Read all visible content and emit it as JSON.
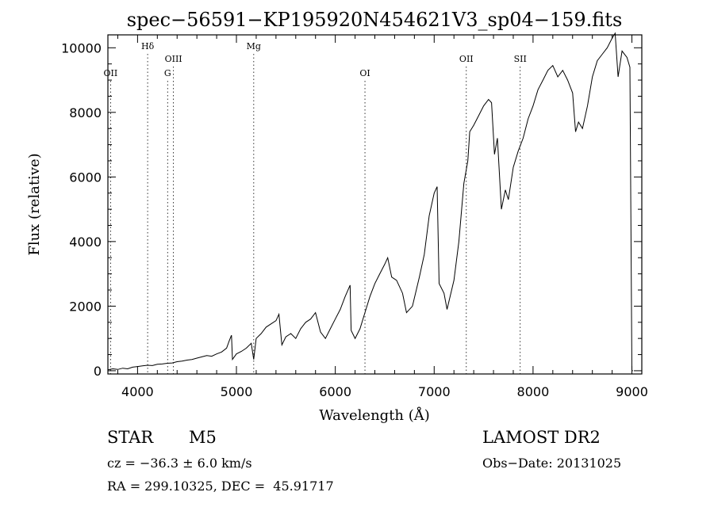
{
  "chart_data": {
    "type": "line",
    "title": "spec−56591−KP195920N454621V3_sp04−159.fits",
    "xlabel": "Wavelength (Å)",
    "ylabel": "Flux (relative)",
    "xlim": [
      3700,
      9100
    ],
    "ylim": [
      -100,
      10400
    ],
    "xticks": [
      4000,
      5000,
      6000,
      7000,
      8000,
      9000
    ],
    "xtick_labels": [
      "4000",
      "5000",
      "6000",
      "7000",
      "8000",
      "9000"
    ],
    "yticks": [
      0,
      2000,
      4000,
      6000,
      8000,
      10000
    ],
    "ytick_labels": [
      "0",
      "2000",
      "4000",
      "6000",
      "8000",
      "10000"
    ],
    "grid": false,
    "lines": [
      {
        "label": "OII",
        "x": 3727,
        "tier": 3
      },
      {
        "label": "Hδ",
        "x": 4102,
        "tier": 1
      },
      {
        "label": "OIII",
        "x": 4363,
        "tier": 2
      },
      {
        "label": "G",
        "x": 4304,
        "tier": 3
      },
      {
        "label": "Mg",
        "x": 5175,
        "tier": 1
      },
      {
        "label": "OI",
        "x": 6300,
        "tier": 3
      },
      {
        "label": "OII",
        "x": 7325,
        "tier": 2
      },
      {
        "label": "SII",
        "x": 7870,
        "tier": 2
      }
    ],
    "series": [
      {
        "name": "spectrum",
        "points": [
          [
            3700,
            30
          ],
          [
            3750,
            60
          ],
          [
            3800,
            40
          ],
          [
            3850,
            80
          ],
          [
            3900,
            60
          ],
          [
            3950,
            110
          ],
          [
            4000,
            130
          ],
          [
            4050,
            150
          ],
          [
            4100,
            170
          ],
          [
            4150,
            160
          ],
          [
            4200,
            200
          ],
          [
            4250,
            210
          ],
          [
            4300,
            230
          ],
          [
            4350,
            240
          ],
          [
            4400,
            280
          ],
          [
            4450,
            300
          ],
          [
            4500,
            330
          ],
          [
            4550,
            350
          ],
          [
            4600,
            390
          ],
          [
            4650,
            430
          ],
          [
            4700,
            470
          ],
          [
            4750,
            450
          ],
          [
            4800,
            520
          ],
          [
            4850,
            580
          ],
          [
            4900,
            700
          ],
          [
            4930,
            950
          ],
          [
            4950,
            1100
          ],
          [
            4960,
            350
          ],
          [
            5000,
            520
          ],
          [
            5050,
            600
          ],
          [
            5100,
            700
          ],
          [
            5150,
            850
          ],
          [
            5175,
            350
          ],
          [
            5200,
            1000
          ],
          [
            5250,
            1150
          ],
          [
            5300,
            1350
          ],
          [
            5350,
            1450
          ],
          [
            5400,
            1550
          ],
          [
            5430,
            1750
          ],
          [
            5460,
            800
          ],
          [
            5500,
            1050
          ],
          [
            5550,
            1150
          ],
          [
            5600,
            1000
          ],
          [
            5650,
            1300
          ],
          [
            5700,
            1500
          ],
          [
            5750,
            1600
          ],
          [
            5800,
            1800
          ],
          [
            5850,
            1200
          ],
          [
            5900,
            1000
          ],
          [
            5950,
            1300
          ],
          [
            6000,
            1600
          ],
          [
            6050,
            1900
          ],
          [
            6100,
            2300
          ],
          [
            6150,
            2650
          ],
          [
            6160,
            1250
          ],
          [
            6200,
            1000
          ],
          [
            6250,
            1300
          ],
          [
            6300,
            1800
          ],
          [
            6350,
            2300
          ],
          [
            6400,
            2700
          ],
          [
            6450,
            3000
          ],
          [
            6500,
            3300
          ],
          [
            6530,
            3500
          ],
          [
            6570,
            2900
          ],
          [
            6620,
            2800
          ],
          [
            6680,
            2400
          ],
          [
            6720,
            1800
          ],
          [
            6780,
            2000
          ],
          [
            6850,
            2900
          ],
          [
            6900,
            3600
          ],
          [
            6950,
            4800
          ],
          [
            7000,
            5500
          ],
          [
            7030,
            5700
          ],
          [
            7050,
            2700
          ],
          [
            7100,
            2400
          ],
          [
            7130,
            1900
          ],
          [
            7200,
            2800
          ],
          [
            7250,
            4000
          ],
          [
            7300,
            5800
          ],
          [
            7340,
            6500
          ],
          [
            7360,
            7400
          ],
          [
            7400,
            7600
          ],
          [
            7450,
            7900
          ],
          [
            7500,
            8200
          ],
          [
            7550,
            8400
          ],
          [
            7580,
            8300
          ],
          [
            7610,
            6700
          ],
          [
            7640,
            7200
          ],
          [
            7680,
            5000
          ],
          [
            7720,
            5600
          ],
          [
            7750,
            5300
          ],
          [
            7800,
            6300
          ],
          [
            7850,
            6800
          ],
          [
            7900,
            7200
          ],
          [
            7950,
            7800
          ],
          [
            8000,
            8200
          ],
          [
            8050,
            8700
          ],
          [
            8100,
            9000
          ],
          [
            8150,
            9300
          ],
          [
            8200,
            9450
          ],
          [
            8250,
            9100
          ],
          [
            8300,
            9300
          ],
          [
            8350,
            9000
          ],
          [
            8400,
            8600
          ],
          [
            8430,
            7400
          ],
          [
            8460,
            7700
          ],
          [
            8500,
            7500
          ],
          [
            8550,
            8200
          ],
          [
            8600,
            9100
          ],
          [
            8650,
            9600
          ],
          [
            8700,
            9800
          ],
          [
            8750,
            10000
          ],
          [
            8800,
            10300
          ],
          [
            8830,
            10450
          ],
          [
            8860,
            9100
          ],
          [
            8900,
            9900
          ],
          [
            8950,
            9700
          ],
          [
            8980,
            9400
          ],
          [
            9000,
            0
          ],
          [
            9010,
            0
          ]
        ]
      }
    ]
  },
  "info": {
    "object_class": "STAR",
    "subclass": "M5",
    "survey": "LAMOST DR2",
    "cz": "cz = −36.3 ± 6.0 km/s",
    "obs_date": "Obs−Date: 20131025",
    "coords": "RA = 299.10325, DEC =  45.91717"
  }
}
